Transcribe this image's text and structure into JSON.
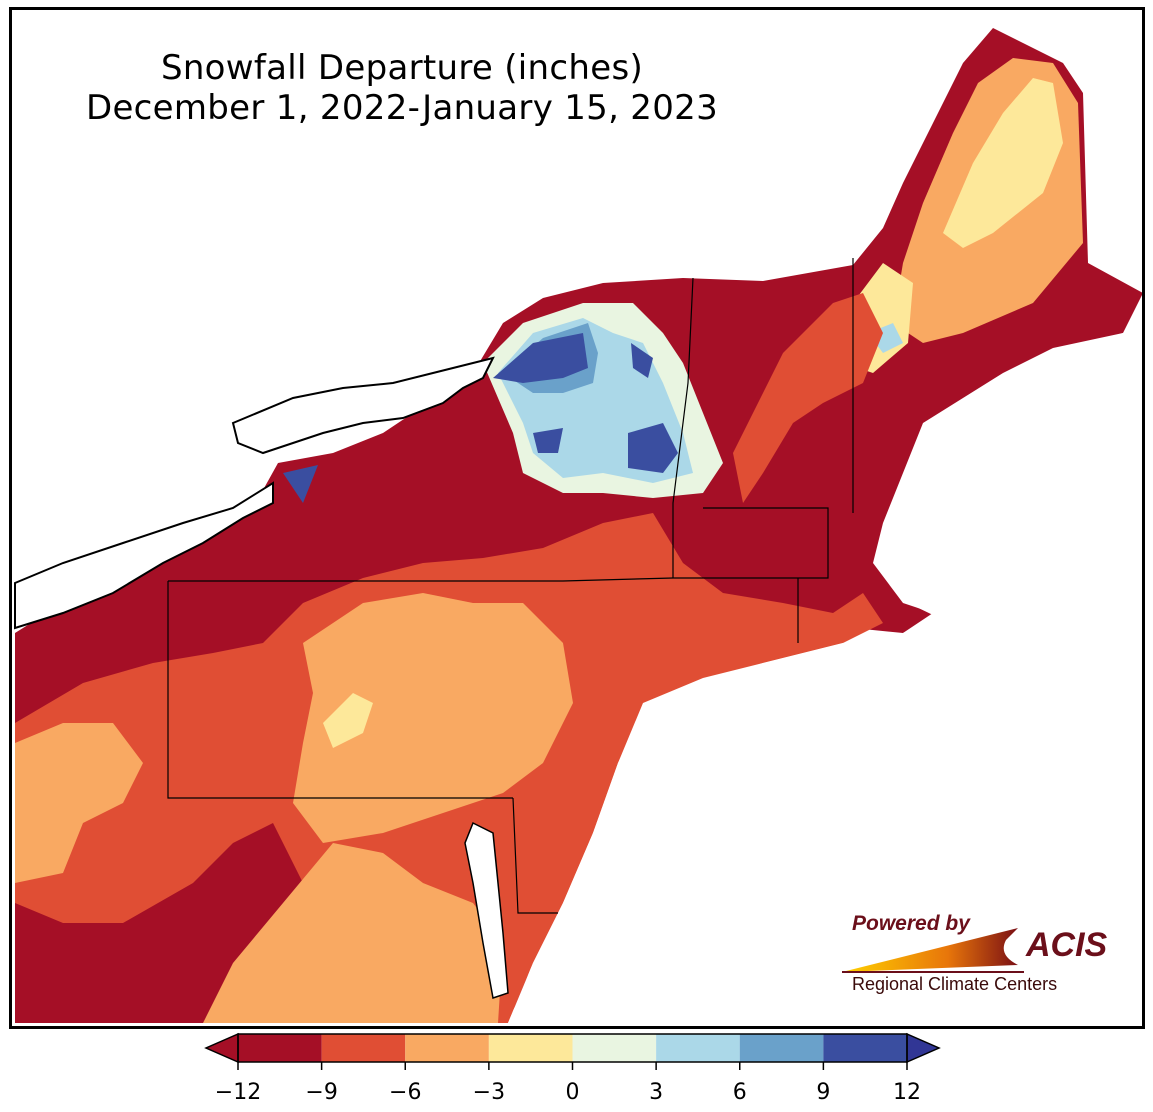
{
  "title": {
    "line1": "Snowfall Departure (inches)",
    "line2": "December 1, 2022-January 15, 2023"
  },
  "logo": {
    "powered": "Powered by",
    "acis": "ACIS",
    "subtitle": "Regional Climate Centers"
  },
  "legend": {
    "bins": [
      {
        "from": -12,
        "to": -9,
        "color": "#a50f26"
      },
      {
        "from": -9,
        "to": -6,
        "color": "#e04e34"
      },
      {
        "from": -6,
        "to": -3,
        "color": "#f9a962"
      },
      {
        "from": -3,
        "to": 0,
        "color": "#fde89a"
      },
      {
        "from": 0,
        "to": 3,
        "color": "#e9f5e1"
      },
      {
        "from": 3,
        "to": 6,
        "color": "#abd8e8"
      },
      {
        "from": 6,
        "to": 9,
        "color": "#6aa1ca"
      },
      {
        "from": 9,
        "to": 12,
        "color": "#3a4ea0"
      }
    ],
    "tick_labels": [
      "−12",
      "−9",
      "−6",
      "−3",
      "0",
      "3",
      "6",
      "9",
      "12"
    ],
    "under_color": "#a50f26",
    "over_color": "#313695"
  },
  "colors": {
    "deep_red": "#a50f26",
    "red": "#e04e34",
    "orange": "#f9a962",
    "yellow": "#fde89a",
    "pale": "#e9f5e1",
    "light_blue": "#abd8e8",
    "mid_blue": "#6aa1ca",
    "dark_blue": "#3a4ea0",
    "lake": "#ffffff",
    "ocean": "#ffffff"
  }
}
